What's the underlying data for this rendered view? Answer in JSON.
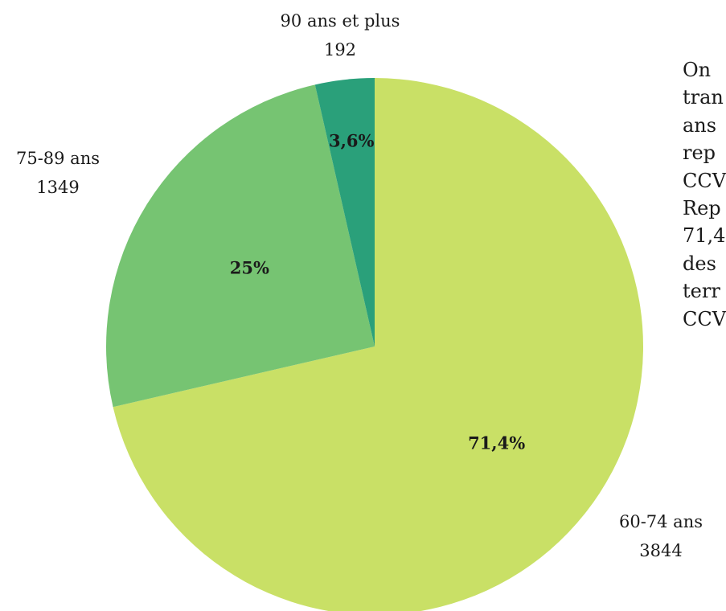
{
  "chart_data": {
    "type": "pie",
    "title": "",
    "categories": [
      "60-74 ans",
      "75-89 ans",
      "90 ans et plus"
    ],
    "values": [
      3844,
      1349,
      192
    ],
    "percent_labels": [
      "71,4%",
      "25%",
      "3,6%"
    ],
    "colors": [
      "#c9e066",
      "#76c472",
      "#2aa07a"
    ],
    "start_angle_deg": 0,
    "direction": "clockwise",
    "legend": "none"
  },
  "side_text": {
    "lines": [
      "On",
      "tran",
      "ans",
      "rep",
      "CCV",
      "Rep",
      "71,4",
      "des",
      "terr",
      "CCV"
    ]
  }
}
